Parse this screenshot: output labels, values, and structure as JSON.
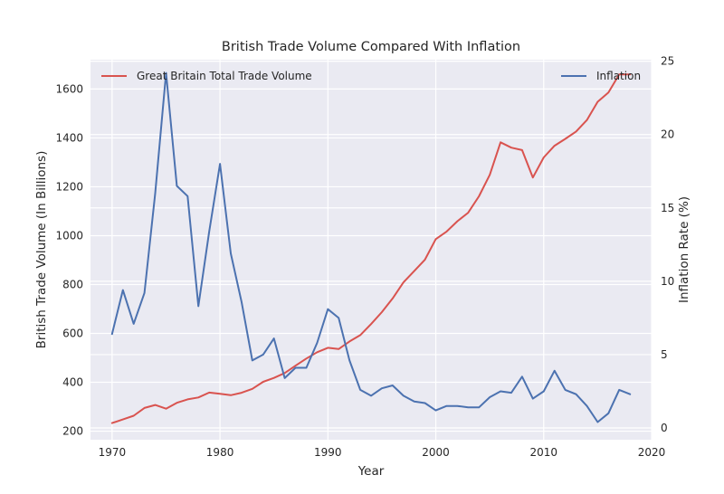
{
  "chart_data": {
    "type": "line",
    "title": "British Trade Volume Compared With Inflation",
    "xlabel": "Year",
    "ylabel_left": "British Trade Volume (In Billions)",
    "ylabel_right": "Inflation Rate (%)",
    "xlim": [
      1968,
      2020
    ],
    "ylim_left": [
      165,
      1720
    ],
    "ylim_right": [
      -0.8,
      25.1
    ],
    "x_ticks": [
      1970,
      1980,
      1990,
      2000,
      2010,
      2020
    ],
    "y_ticks_left": [
      200,
      400,
      600,
      800,
      1000,
      1200,
      1400,
      1600
    ],
    "y_ticks_right": [
      0,
      5,
      10,
      15,
      20,
      25
    ],
    "grid": true,
    "colors": {
      "background": "#eaeaf2",
      "grid": "#ffffff",
      "trade": "#d9534f",
      "inflation": "#4c72b0"
    },
    "series": [
      {
        "name": "Great Britain Total Trade Volume",
        "axis": "left",
        "color": "#d9534f",
        "legend_position": "upper-left",
        "x": [
          1970,
          1971,
          1972,
          1973,
          1974,
          1975,
          1976,
          1977,
          1978,
          1979,
          1980,
          1981,
          1982,
          1983,
          1984,
          1985,
          1986,
          1987,
          1988,
          1989,
          1990,
          1991,
          1992,
          1993,
          1994,
          1995,
          1996,
          1997,
          1998,
          1999,
          2000,
          2001,
          2002,
          2003,
          2004,
          2005,
          2006,
          2007,
          2008,
          2009,
          2010,
          2011,
          2012,
          2013,
          2014,
          2015,
          2016,
          2017,
          2018
        ],
        "values": [
          233,
          248,
          263,
          295,
          307,
          292,
          316,
          330,
          338,
          358,
          353,
          347,
          357,
          373,
          402,
          418,
          438,
          468,
          497,
          523,
          541,
          536,
          567,
          593,
          638,
          687,
          743,
          809,
          855,
          902,
          986,
          1017,
          1059,
          1094,
          1161,
          1249,
          1382,
          1360,
          1350,
          1238,
          1320,
          1368,
          1396,
          1426,
          1473,
          1548,
          1586,
          1660,
          1660
        ]
      },
      {
        "name": "Inflation",
        "axis": "right",
        "color": "#4c72b0",
        "legend_position": "upper-right",
        "x": [
          1970,
          1971,
          1972,
          1973,
          1974,
          1975,
          1976,
          1977,
          1978,
          1979,
          1980,
          1981,
          1982,
          1983,
          1984,
          1985,
          1986,
          1987,
          1988,
          1989,
          1990,
          1991,
          1992,
          1993,
          1994,
          1995,
          1996,
          1997,
          1998,
          1999,
          2000,
          2001,
          2002,
          2003,
          2004,
          2005,
          2006,
          2007,
          2008,
          2009,
          2010,
          2011,
          2012,
          2013,
          2014,
          2015,
          2016,
          2017,
          2018
        ],
        "values": [
          6.4,
          9.4,
          7.1,
          9.2,
          16.0,
          24.2,
          16.5,
          15.8,
          8.3,
          13.4,
          18.0,
          11.9,
          8.6,
          4.6,
          5.0,
          6.1,
          3.4,
          4.1,
          4.1,
          5.8,
          8.1,
          7.5,
          4.6,
          2.6,
          2.2,
          2.7,
          2.9,
          2.2,
          1.8,
          1.7,
          1.2,
          1.5,
          1.5,
          1.4,
          1.4,
          2.1,
          2.5,
          2.4,
          3.5,
          2.0,
          2.5,
          3.9,
          2.6,
          2.3,
          1.5,
          0.4,
          1.0,
          2.6,
          2.3
        ]
      }
    ]
  }
}
